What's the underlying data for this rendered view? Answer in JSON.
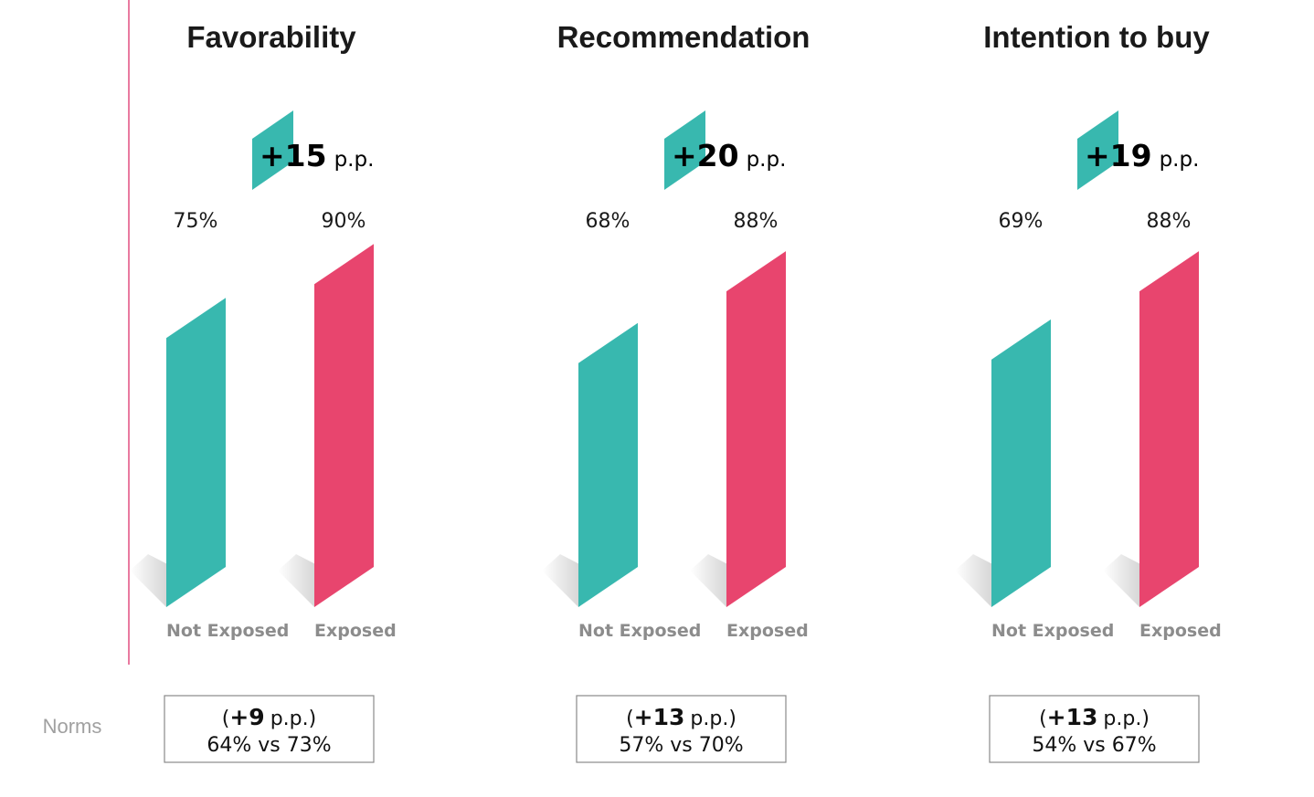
{
  "colors": {
    "not_exposed": "#38b8af",
    "exposed": "#e8456e",
    "delta_badge": "#38b8af",
    "divider": "#e97aa0",
    "title": "#1a1a1a",
    "axis_label": "#8c8c8c",
    "norms_label": "#a0a0a0"
  },
  "norms_label": "Norms",
  "unit": "p.p.",
  "chart_data": [
    {
      "type": "bar",
      "title": "Favorability",
      "categories": [
        "Not Exposed",
        "Exposed"
      ],
      "values": [
        75,
        90
      ],
      "value_labels": [
        "75%",
        "90%"
      ],
      "delta": "+15",
      "ylim": [
        0,
        100
      ],
      "norms": {
        "delta": "+9",
        "comparison": "64% vs 73%"
      }
    },
    {
      "type": "bar",
      "title": "Recommendation",
      "categories": [
        "Not Exposed",
        "Exposed"
      ],
      "values": [
        68,
        88
      ],
      "value_labels": [
        "68%",
        "88%"
      ],
      "delta": "+20",
      "ylim": [
        0,
        100
      ],
      "norms": {
        "delta": "+13",
        "comparison": "57% vs 70%"
      }
    },
    {
      "type": "bar",
      "title": "Intention to buy",
      "categories": [
        "Not Exposed",
        "Exposed"
      ],
      "values": [
        69,
        88
      ],
      "value_labels": [
        "69%",
        "88%"
      ],
      "delta": "+19",
      "ylim": [
        0,
        100
      ],
      "norms": {
        "delta": "+13",
        "comparison": "54% vs 67%"
      }
    }
  ]
}
